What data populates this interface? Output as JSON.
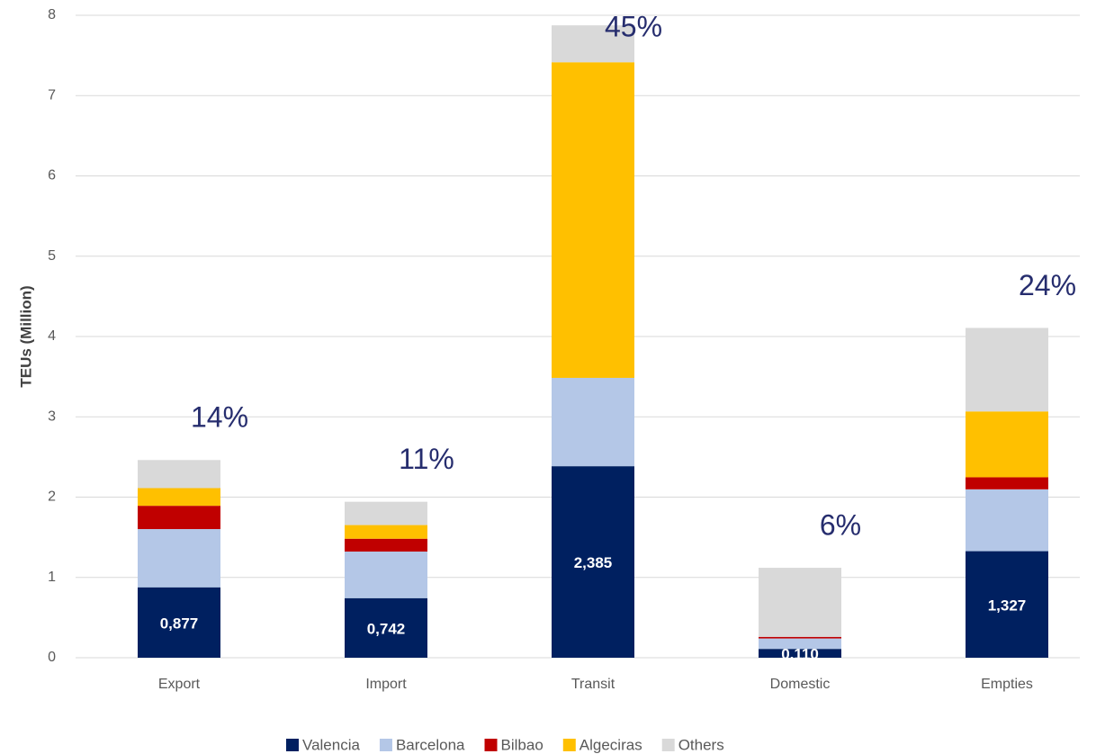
{
  "chart_data": {
    "type": "stacked_bar",
    "y_label": "TEUs (Million)",
    "categories": [
      "Export",
      "Import",
      "Transit",
      "Domestic",
      "Empties"
    ],
    "series": [
      {
        "name": "Valencia",
        "color": "#002060",
        "values": [
          0.877,
          0.742,
          2.385,
          0.11,
          1.327
        ],
        "value_labels": [
          "0,877",
          "0,742",
          "2,385",
          "0,110",
          "1,327"
        ]
      },
      {
        "name": "Barcelona",
        "color": "#b4c7e7",
        "values": [
          0.725,
          0.58,
          1.1,
          0.13,
          0.77
        ]
      },
      {
        "name": "Bilbao",
        "color": "#c00000",
        "values": [
          0.29,
          0.16,
          0,
          0.02,
          0.15
        ]
      },
      {
        "name": "Algeciras",
        "color": "#ffc000",
        "values": [
          0.22,
          0.17,
          3.93,
          0,
          0.82
        ]
      },
      {
        "name": "Others",
        "color": "#d9d9d9",
        "values": [
          0.35,
          0.29,
          0.46,
          0.86,
          1.04
        ]
      }
    ],
    "annotations": [
      "14%",
      "11%",
      "45%",
      "6%",
      "24%"
    ],
    "ylim": [
      0,
      8
    ],
    "yticks": [
      0,
      1,
      2,
      3,
      4,
      5,
      6,
      7,
      8
    ],
    "grid": true,
    "legend": "bottom"
  }
}
